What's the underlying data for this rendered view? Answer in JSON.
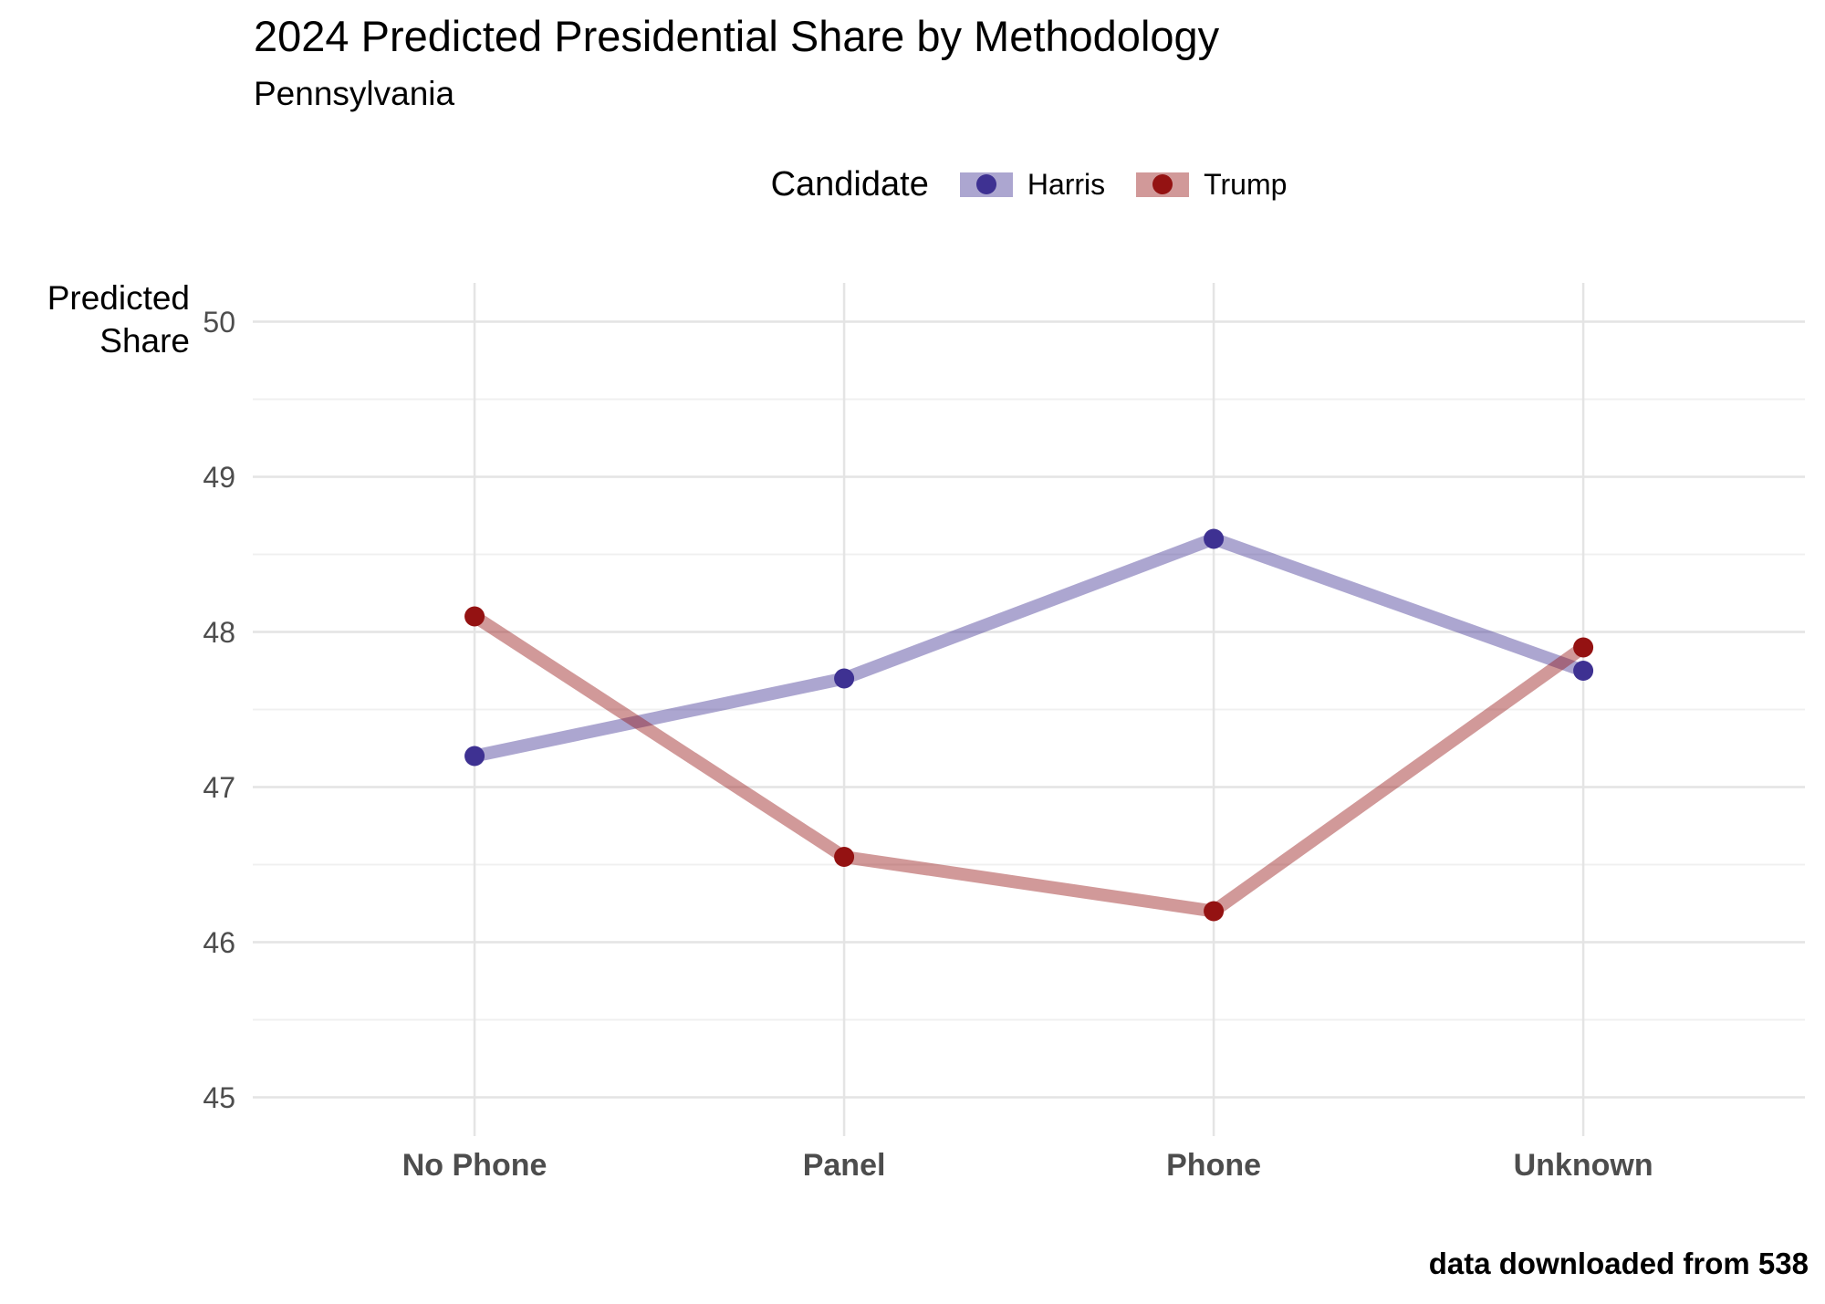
{
  "title": "2024 Predicted Presidential Share by Methodology",
  "subtitle": "Pennsylvania",
  "caption": "data downloaded from 538",
  "y_axis_title": {
    "line1": "Predicted",
    "line2": "Share"
  },
  "legend": {
    "title": "Candidate",
    "items": [
      {
        "label": "Harris",
        "color": "#3e3192"
      },
      {
        "label": "Trump",
        "color": "#941212"
      }
    ]
  },
  "chart_data": {
    "type": "line",
    "categories": [
      "No Phone",
      "Panel",
      "Phone",
      "Unknown"
    ],
    "series": [
      {
        "name": "Harris",
        "color": "#3e3192",
        "values": [
          47.2,
          47.7,
          48.6,
          47.75
        ]
      },
      {
        "name": "Trump",
        "color": "#941212",
        "values": [
          48.1,
          46.55,
          46.2,
          47.9
        ]
      }
    ],
    "title": "2024 Predicted Presidential Share by Methodology",
    "subtitle": "Pennsylvania",
    "xlabel": "",
    "ylabel": "Predicted Share",
    "ylim": [
      44.75,
      50.25
    ],
    "yticks": [
      45,
      46,
      47,
      48,
      49,
      50
    ],
    "minor_yticks": [
      45.5,
      46.5,
      47.5,
      48.5,
      49.5
    ],
    "grid": true,
    "legend_position": "top",
    "colors": {
      "grid_major": "#e4e4e4",
      "grid_minor": "#f0f0f0",
      "axis_text": "#4d4d4d",
      "line_alpha": 0.43
    }
  }
}
